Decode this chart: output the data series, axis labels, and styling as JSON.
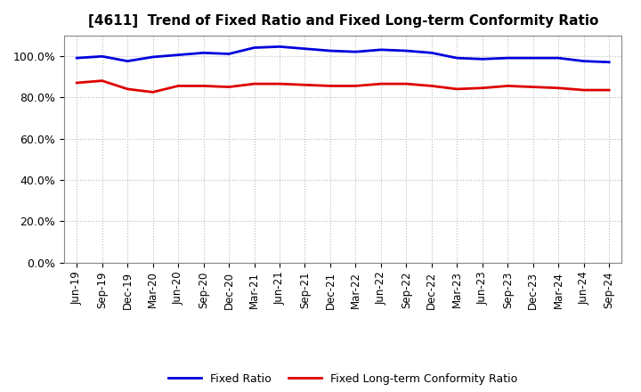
{
  "title": "[4611]  Trend of Fixed Ratio and Fixed Long-term Conformity Ratio",
  "x_labels": [
    "Jun-19",
    "Sep-19",
    "Dec-19",
    "Mar-20",
    "Jun-20",
    "Sep-20",
    "Dec-20",
    "Mar-21",
    "Jun-21",
    "Sep-21",
    "Dec-21",
    "Mar-22",
    "Jun-22",
    "Sep-22",
    "Dec-22",
    "Mar-23",
    "Jun-23",
    "Sep-23",
    "Dec-23",
    "Mar-24",
    "Jun-24",
    "Sep-24"
  ],
  "fixed_ratio": [
    99.0,
    99.8,
    97.5,
    99.5,
    100.5,
    101.5,
    101.0,
    104.0,
    104.5,
    103.5,
    102.5,
    102.0,
    103.0,
    102.5,
    101.5,
    99.0,
    98.5,
    99.0,
    99.0,
    99.0,
    97.5,
    97.0
  ],
  "fixed_lt_ratio": [
    87.0,
    88.0,
    84.0,
    82.5,
    85.5,
    85.5,
    85.0,
    86.5,
    86.5,
    86.0,
    85.5,
    85.5,
    86.5,
    86.5,
    85.5,
    84.0,
    84.5,
    85.5,
    85.0,
    84.5,
    83.5,
    83.5
  ],
  "fixed_ratio_color": "#0000dd",
  "fixed_lt_ratio_color": "#dd0000",
  "ylim": [
    0,
    110
  ],
  "yticks": [
    0,
    20,
    40,
    60,
    80,
    100
  ],
  "background_color": "#ffffff",
  "grid_color": "#bbbbbb",
  "legend_fixed_ratio": "Fixed Ratio",
  "legend_fixed_lt_ratio": "Fixed Long-term Conformity Ratio",
  "title_fontsize": 11,
  "tick_fontsize": 8.5,
  "ytick_fontsize": 9,
  "linewidth": 2.0
}
